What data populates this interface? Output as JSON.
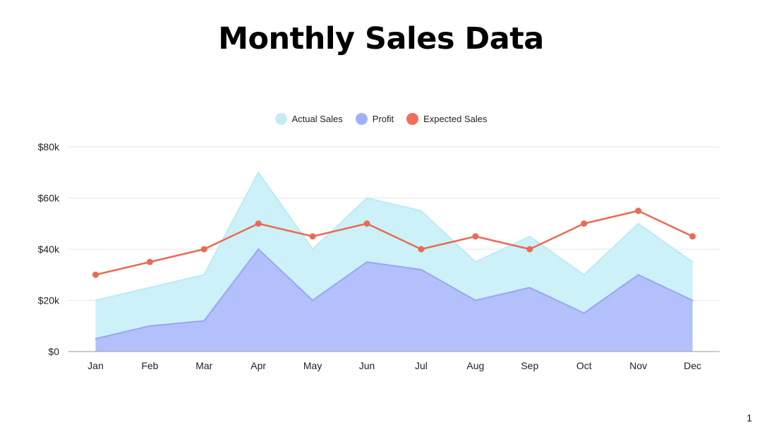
{
  "page_number": "1",
  "colors": {
    "actual": "#ccf1f8",
    "actual_legend": "#c3ecf6",
    "actual_stroke": "#bfeaf4",
    "profit": "#b3c0fb",
    "profit_legend": "#a3b0f8",
    "profit_stroke": "#9aa7ee",
    "expected": "#ea6a55",
    "expected_legend": "#f46b5a",
    "grid": "#e6e6e6",
    "axis": "#9a9a9a"
  },
  "chart_data": {
    "type": "area",
    "title": "Monthly Sales Data",
    "categories": [
      "Jan",
      "Feb",
      "Mar",
      "Apr",
      "May",
      "Jun",
      "Jul",
      "Aug",
      "Sep",
      "Oct",
      "Nov",
      "Dec"
    ],
    "yticks": [
      0,
      20000,
      40000,
      60000,
      80000
    ],
    "ytick_labels": [
      "$0",
      "$20k",
      "$40k",
      "$60k",
      "$80k"
    ],
    "ylim": [
      0,
      80000
    ],
    "legend_position": "top-center",
    "series": [
      {
        "name": "Actual Sales",
        "type": "area",
        "values": [
          20000,
          25000,
          30000,
          70000,
          40000,
          60000,
          55000,
          35000,
          45000,
          30000,
          50000,
          35000
        ]
      },
      {
        "name": "Profit",
        "type": "area",
        "values": [
          5000,
          10000,
          12000,
          40000,
          20000,
          35000,
          32000,
          20000,
          25000,
          15000,
          30000,
          20000
        ]
      },
      {
        "name": "Expected Sales",
        "type": "line",
        "values": [
          30000,
          35000,
          40000,
          50000,
          45000,
          50000,
          40000,
          45000,
          40000,
          50000,
          55000,
          45000
        ]
      }
    ]
  }
}
